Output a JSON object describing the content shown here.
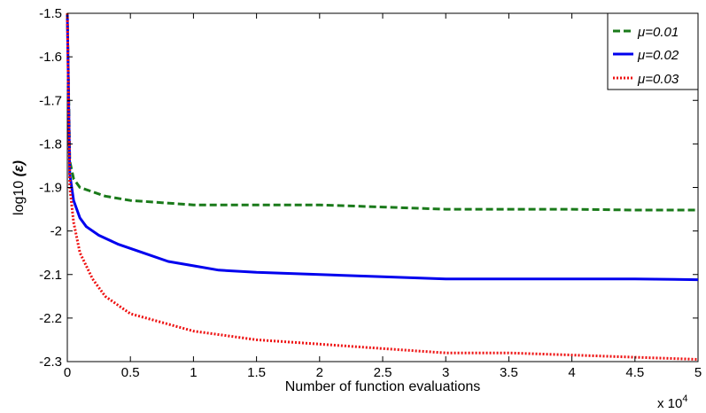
{
  "chart_data": {
    "type": "line",
    "xlabel": "Number of function evaluations",
    "ylabel_prefix": "log10 ",
    "ylabel_symbol": "(ε)",
    "x_multiplier_label": "x 10",
    "x_multiplier_exponent": "4",
    "xlim": [
      0,
      5
    ],
    "ylim": [
      -2.3,
      -1.5
    ],
    "x_ticks": [
      0,
      0.5,
      1,
      1.5,
      2,
      2.5,
      3,
      3.5,
      4,
      4.5,
      5
    ],
    "x_tick_labels": [
      "0",
      "0.5",
      "1",
      "1.5",
      "2",
      "2.5",
      "3",
      "3.5",
      "4",
      "4.5",
      "5"
    ],
    "y_ticks": [
      -1.5,
      -1.6,
      -1.7,
      -1.8,
      -1.9,
      -2.0,
      -2.1,
      -2.2,
      -2.3
    ],
    "y_tick_labels": [
      "-1.5",
      "-1.6",
      "-1.7",
      "-1.8",
      "-1.9",
      "-2",
      "-2.1",
      "-2.2",
      "-2.3"
    ],
    "grid": false,
    "legend_position": "top-right",
    "series": [
      {
        "name": "μ=0.01",
        "color": "#1a7a1a",
        "style": "dashed",
        "x": [
          0,
          0.02,
          0.05,
          0.1,
          0.2,
          0.3,
          0.5,
          0.75,
          1.0,
          1.5,
          2.0,
          2.5,
          3.0,
          3.5,
          4.0,
          4.5,
          5.0
        ],
        "y": [
          -1.5,
          -1.84,
          -1.88,
          -1.9,
          -1.91,
          -1.92,
          -1.93,
          -1.935,
          -1.94,
          -1.94,
          -1.94,
          -1.945,
          -1.95,
          -1.95,
          -1.95,
          -1.952,
          -1.952
        ]
      },
      {
        "name": "μ=0.02",
        "color": "#0000ee",
        "style": "solid",
        "x": [
          0,
          0.02,
          0.05,
          0.1,
          0.15,
          0.25,
          0.4,
          0.6,
          0.8,
          1.0,
          1.2,
          1.5,
          2.0,
          2.5,
          3.0,
          3.5,
          4.0,
          4.5,
          5.0
        ],
        "y": [
          -1.5,
          -1.87,
          -1.93,
          -1.97,
          -1.99,
          -2.01,
          -2.03,
          -2.05,
          -2.07,
          -2.08,
          -2.09,
          -2.095,
          -2.1,
          -2.105,
          -2.11,
          -2.11,
          -2.11,
          -2.11,
          -2.112
        ]
      },
      {
        "name": "μ=0.03",
        "color": "#ee1111",
        "style": "dotted",
        "x": [
          0,
          0.02,
          0.05,
          0.1,
          0.2,
          0.3,
          0.5,
          0.75,
          1.0,
          1.25,
          1.5,
          2.0,
          2.5,
          3.0,
          3.5,
          4.0,
          4.5,
          5.0
        ],
        "y": [
          -1.5,
          -1.9,
          -1.98,
          -2.05,
          -2.11,
          -2.15,
          -2.19,
          -2.21,
          -2.23,
          -2.24,
          -2.25,
          -2.26,
          -2.27,
          -2.28,
          -2.28,
          -2.285,
          -2.29,
          -2.295
        ]
      }
    ]
  }
}
